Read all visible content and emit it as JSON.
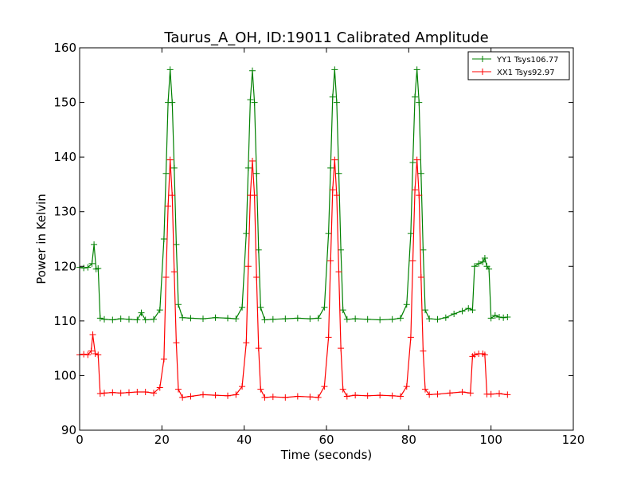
{
  "chart_data": {
    "type": "line",
    "title": "Taurus_A_OH, ID:19011 Calibrated Amplitude",
    "xlabel": "Time (seconds)",
    "ylabel": "Power in Kelvin",
    "xlim": [
      0,
      120
    ],
    "ylim": [
      90,
      160
    ],
    "xticks": [
      0,
      20,
      40,
      60,
      80,
      100,
      120
    ],
    "yticks": [
      90,
      100,
      110,
      120,
      130,
      140,
      150,
      160
    ],
    "grid": false,
    "legend_position": "top-right",
    "marker": "+",
    "series": [
      {
        "name": "YY1 Tsys106.77",
        "color": "#008000",
        "x": [
          0,
          1,
          2,
          3,
          3.5,
          4,
          4.5,
          5,
          6,
          8,
          10,
          12,
          14,
          15,
          16,
          18,
          19.5,
          20.5,
          21,
          21.5,
          22,
          22.5,
          23,
          23.5,
          24,
          25,
          27,
          30,
          33,
          36,
          38,
          39.5,
          40.5,
          41,
          41.5,
          42,
          42.5,
          43,
          43.5,
          44,
          45,
          47,
          50,
          53,
          56,
          58,
          59.5,
          60.5,
          61,
          61.5,
          62,
          62.5,
          63,
          63.5,
          64,
          65,
          67,
          70,
          73,
          76,
          78,
          79.5,
          80.5,
          81,
          81.5,
          82,
          82.5,
          83,
          83.5,
          84,
          85,
          87,
          89,
          91,
          93,
          94.5,
          95.5,
          96,
          97,
          98,
          98.5,
          99,
          99.5,
          100,
          101,
          102,
          103,
          104
        ],
        "y": [
          119.8,
          119.7,
          119.8,
          120.5,
          124.0,
          119.5,
          119.6,
          110.5,
          110.3,
          110.2,
          110.4,
          110.3,
          110.2,
          111.5,
          110.2,
          110.3,
          112.0,
          125.0,
          137.0,
          150.0,
          156.0,
          150.0,
          138.0,
          124.0,
          113.0,
          110.6,
          110.5,
          110.4,
          110.6,
          110.5,
          110.4,
          112.5,
          126.0,
          138.0,
          150.5,
          155.8,
          150.0,
          137.0,
          123.0,
          112.5,
          110.2,
          110.3,
          110.4,
          110.5,
          110.4,
          110.5,
          112.5,
          126.0,
          138.0,
          151.0,
          156.0,
          150.0,
          137.0,
          123.0,
          112.0,
          110.3,
          110.4,
          110.3,
          110.2,
          110.3,
          110.5,
          113.0,
          126.0,
          139.0,
          151.0,
          156.0,
          150.0,
          137.0,
          123.0,
          112.0,
          110.4,
          110.3,
          110.6,
          111.3,
          111.8,
          112.3,
          112.0,
          120.0,
          120.5,
          120.8,
          121.5,
          120.0,
          119.5,
          110.5,
          111.0,
          110.7,
          110.6,
          110.7
        ]
      },
      {
        "name": "XX1 Tsys92.97",
        "color": "#ff0000",
        "x": [
          0,
          1,
          2,
          2.8,
          3.2,
          3.8,
          4.5,
          5,
          6,
          8,
          10,
          12,
          14,
          16,
          18,
          19.5,
          20.5,
          21,
          21.5,
          22,
          22.5,
          23,
          23.5,
          24,
          25,
          27,
          30,
          33,
          36,
          38,
          39.5,
          40.5,
          41,
          41.5,
          42,
          42.5,
          43,
          43.5,
          44,
          45,
          47,
          50,
          53,
          56,
          58,
          59.5,
          60.5,
          61,
          61.5,
          62,
          62.5,
          63,
          63.5,
          64,
          65,
          67,
          70,
          73,
          76,
          78,
          79.5,
          80.5,
          81,
          81.5,
          82,
          82.5,
          83,
          83.5,
          84,
          85,
          87,
          90,
          93,
          95,
          95.5,
          96,
          97,
          98,
          98.5,
          99,
          100,
          102,
          104
        ],
        "y": [
          103.8,
          103.9,
          103.8,
          104.5,
          107.5,
          104.0,
          103.8,
          96.7,
          96.8,
          96.9,
          96.8,
          96.9,
          97.0,
          97.0,
          96.8,
          97.8,
          103.0,
          118.0,
          131.0,
          139.5,
          133.0,
          119.0,
          106.0,
          97.5,
          96.0,
          96.2,
          96.5,
          96.4,
          96.3,
          96.5,
          98.0,
          106.0,
          120.0,
          133.0,
          139.3,
          133.0,
          118.0,
          105.0,
          97.5,
          96.0,
          96.1,
          96.0,
          96.2,
          96.1,
          96.0,
          98.0,
          107.0,
          121.0,
          134.0,
          139.5,
          133.0,
          119.0,
          105.0,
          97.5,
          96.2,
          96.4,
          96.3,
          96.4,
          96.3,
          96.2,
          98.0,
          107.0,
          121.0,
          134.0,
          139.5,
          133.0,
          118.0,
          104.5,
          97.5,
          96.5,
          96.6,
          96.8,
          97.0,
          96.8,
          103.5,
          103.8,
          104.0,
          104.0,
          103.8,
          96.6,
          96.6,
          96.7,
          96.5
        ]
      }
    ]
  }
}
